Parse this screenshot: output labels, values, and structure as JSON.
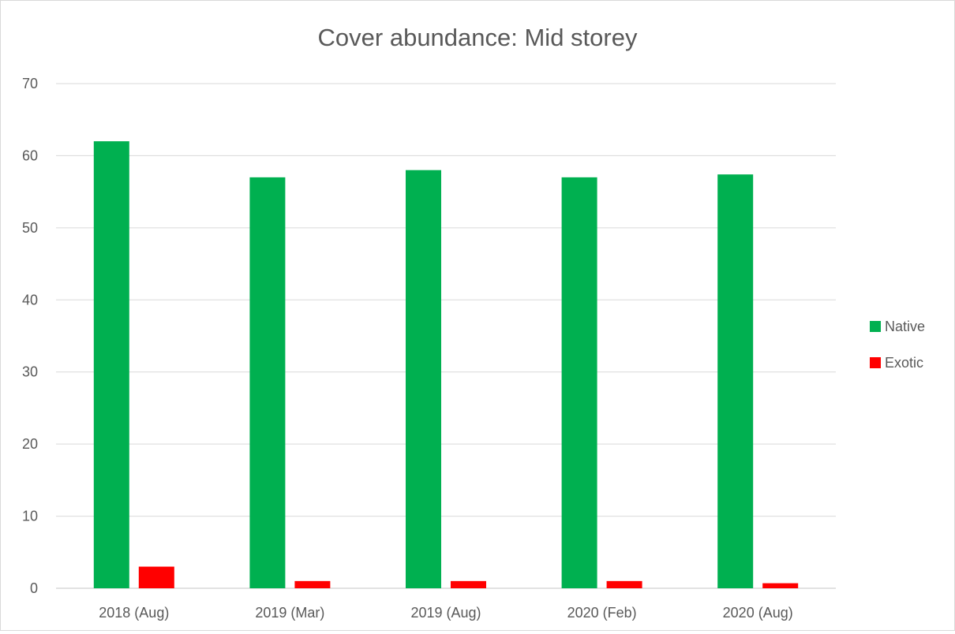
{
  "chart_data": {
    "type": "bar",
    "title": "Cover abundance: Mid storey",
    "xlabel": "",
    "ylabel": "",
    "categories": [
      "2018 (Aug)",
      "2019 (Mar)",
      "2019 (Aug)",
      "2020 (Feb)",
      "2020 (Aug)"
    ],
    "series": [
      {
        "name": "Native",
        "values": [
          62,
          57,
          58,
          57,
          57.4
        ],
        "color": "#00b050"
      },
      {
        "name": "Exotic",
        "values": [
          3,
          1,
          1,
          1,
          0.7
        ],
        "color": "#ff0000"
      }
    ],
    "ylim": [
      0,
      70
    ],
    "yticks": [
      0,
      10,
      20,
      30,
      40,
      50,
      60,
      70
    ],
    "grid": true,
    "legend_position": "right"
  }
}
